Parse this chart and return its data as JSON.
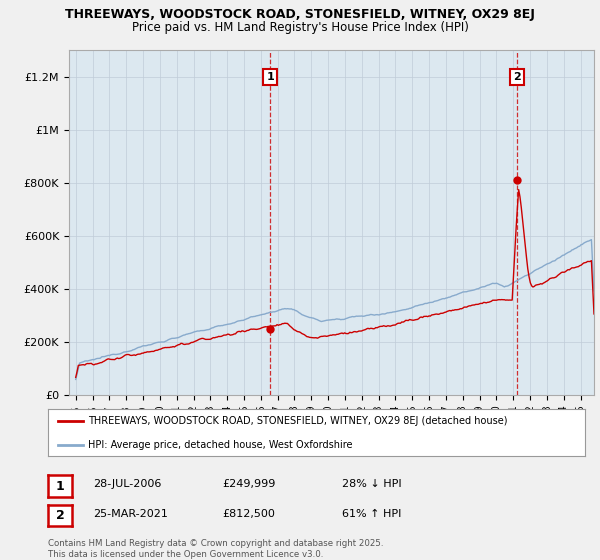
{
  "title1": "THREEWAYS, WOODSTOCK ROAD, STONESFIELD, WITNEY, OX29 8EJ",
  "title2": "Price paid vs. HM Land Registry's House Price Index (HPI)",
  "ylabel_ticks": [
    "£0",
    "£200K",
    "£400K",
    "£600K",
    "£800K",
    "£1M",
    "£1.2M"
  ],
  "ytick_values": [
    0,
    200000,
    400000,
    600000,
    800000,
    1000000,
    1200000
  ],
  "ylim": [
    0,
    1300000
  ],
  "xlim_start": 1994.6,
  "xlim_end": 2025.8,
  "legend_line1": "THREEWAYS, WOODSTOCK ROAD, STONESFIELD, WITNEY, OX29 8EJ (detached house)",
  "legend_line2": "HPI: Average price, detached house, West Oxfordshire",
  "sale1_label": "1",
  "sale1_date": "28-JUL-2006",
  "sale1_price": "£249,999",
  "sale1_hpi": "28% ↓ HPI",
  "sale1_year": 2006.55,
  "sale1_value": 249999,
  "sale2_label": "2",
  "sale2_date": "25-MAR-2021",
  "sale2_price": "£812,500",
  "sale2_hpi": "61% ↑ HPI",
  "sale2_year": 2021.22,
  "sale2_value": 812500,
  "house_color": "#cc0000",
  "hpi_color": "#88aacc",
  "background_color": "#f0f0f0",
  "plot_bg_color": "#dce8f0",
  "copyright_text": "Contains HM Land Registry data © Crown copyright and database right 2025.\nThis data is licensed under the Open Government Licence v3.0.",
  "xtick_years": [
    1995,
    1996,
    1997,
    1998,
    1999,
    2000,
    2001,
    2002,
    2003,
    2004,
    2005,
    2006,
    2007,
    2008,
    2009,
    2010,
    2011,
    2012,
    2013,
    2014,
    2015,
    2016,
    2017,
    2018,
    2019,
    2020,
    2021,
    2022,
    2023,
    2024,
    2025
  ]
}
